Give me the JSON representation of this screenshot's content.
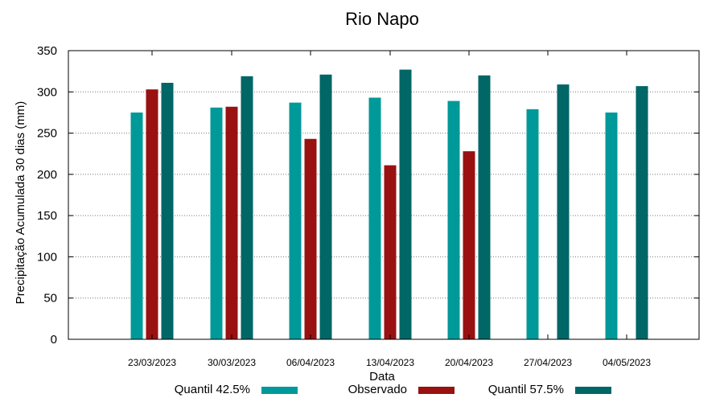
{
  "chart_data": {
    "type": "bar",
    "title": "Rio Napo",
    "xlabel": "Data",
    "ylabel": "Precipitação Acumulada 30 dias (mm)",
    "ylim": [
      0,
      350
    ],
    "yticks": [
      0,
      50,
      100,
      150,
      200,
      250,
      300,
      350
    ],
    "grid": true,
    "legend_position": "bottom",
    "categories": [
      "23/03/2023",
      "30/03/2023",
      "06/04/2023",
      "13/04/2023",
      "20/04/2023",
      "27/04/2023",
      "04/05/2023"
    ],
    "series": [
      {
        "name": "Quantil 42.5%",
        "color": "#009999",
        "values": [
          275,
          281,
          287,
          293,
          289,
          279,
          275
        ]
      },
      {
        "name": "Observado",
        "color": "#991111",
        "values": [
          303,
          282,
          243,
          211,
          228,
          null,
          null
        ]
      },
      {
        "name": "Quantil 57.5%",
        "color": "#006666",
        "values": [
          311,
          319,
          321,
          327,
          320,
          309,
          307
        ]
      }
    ]
  }
}
